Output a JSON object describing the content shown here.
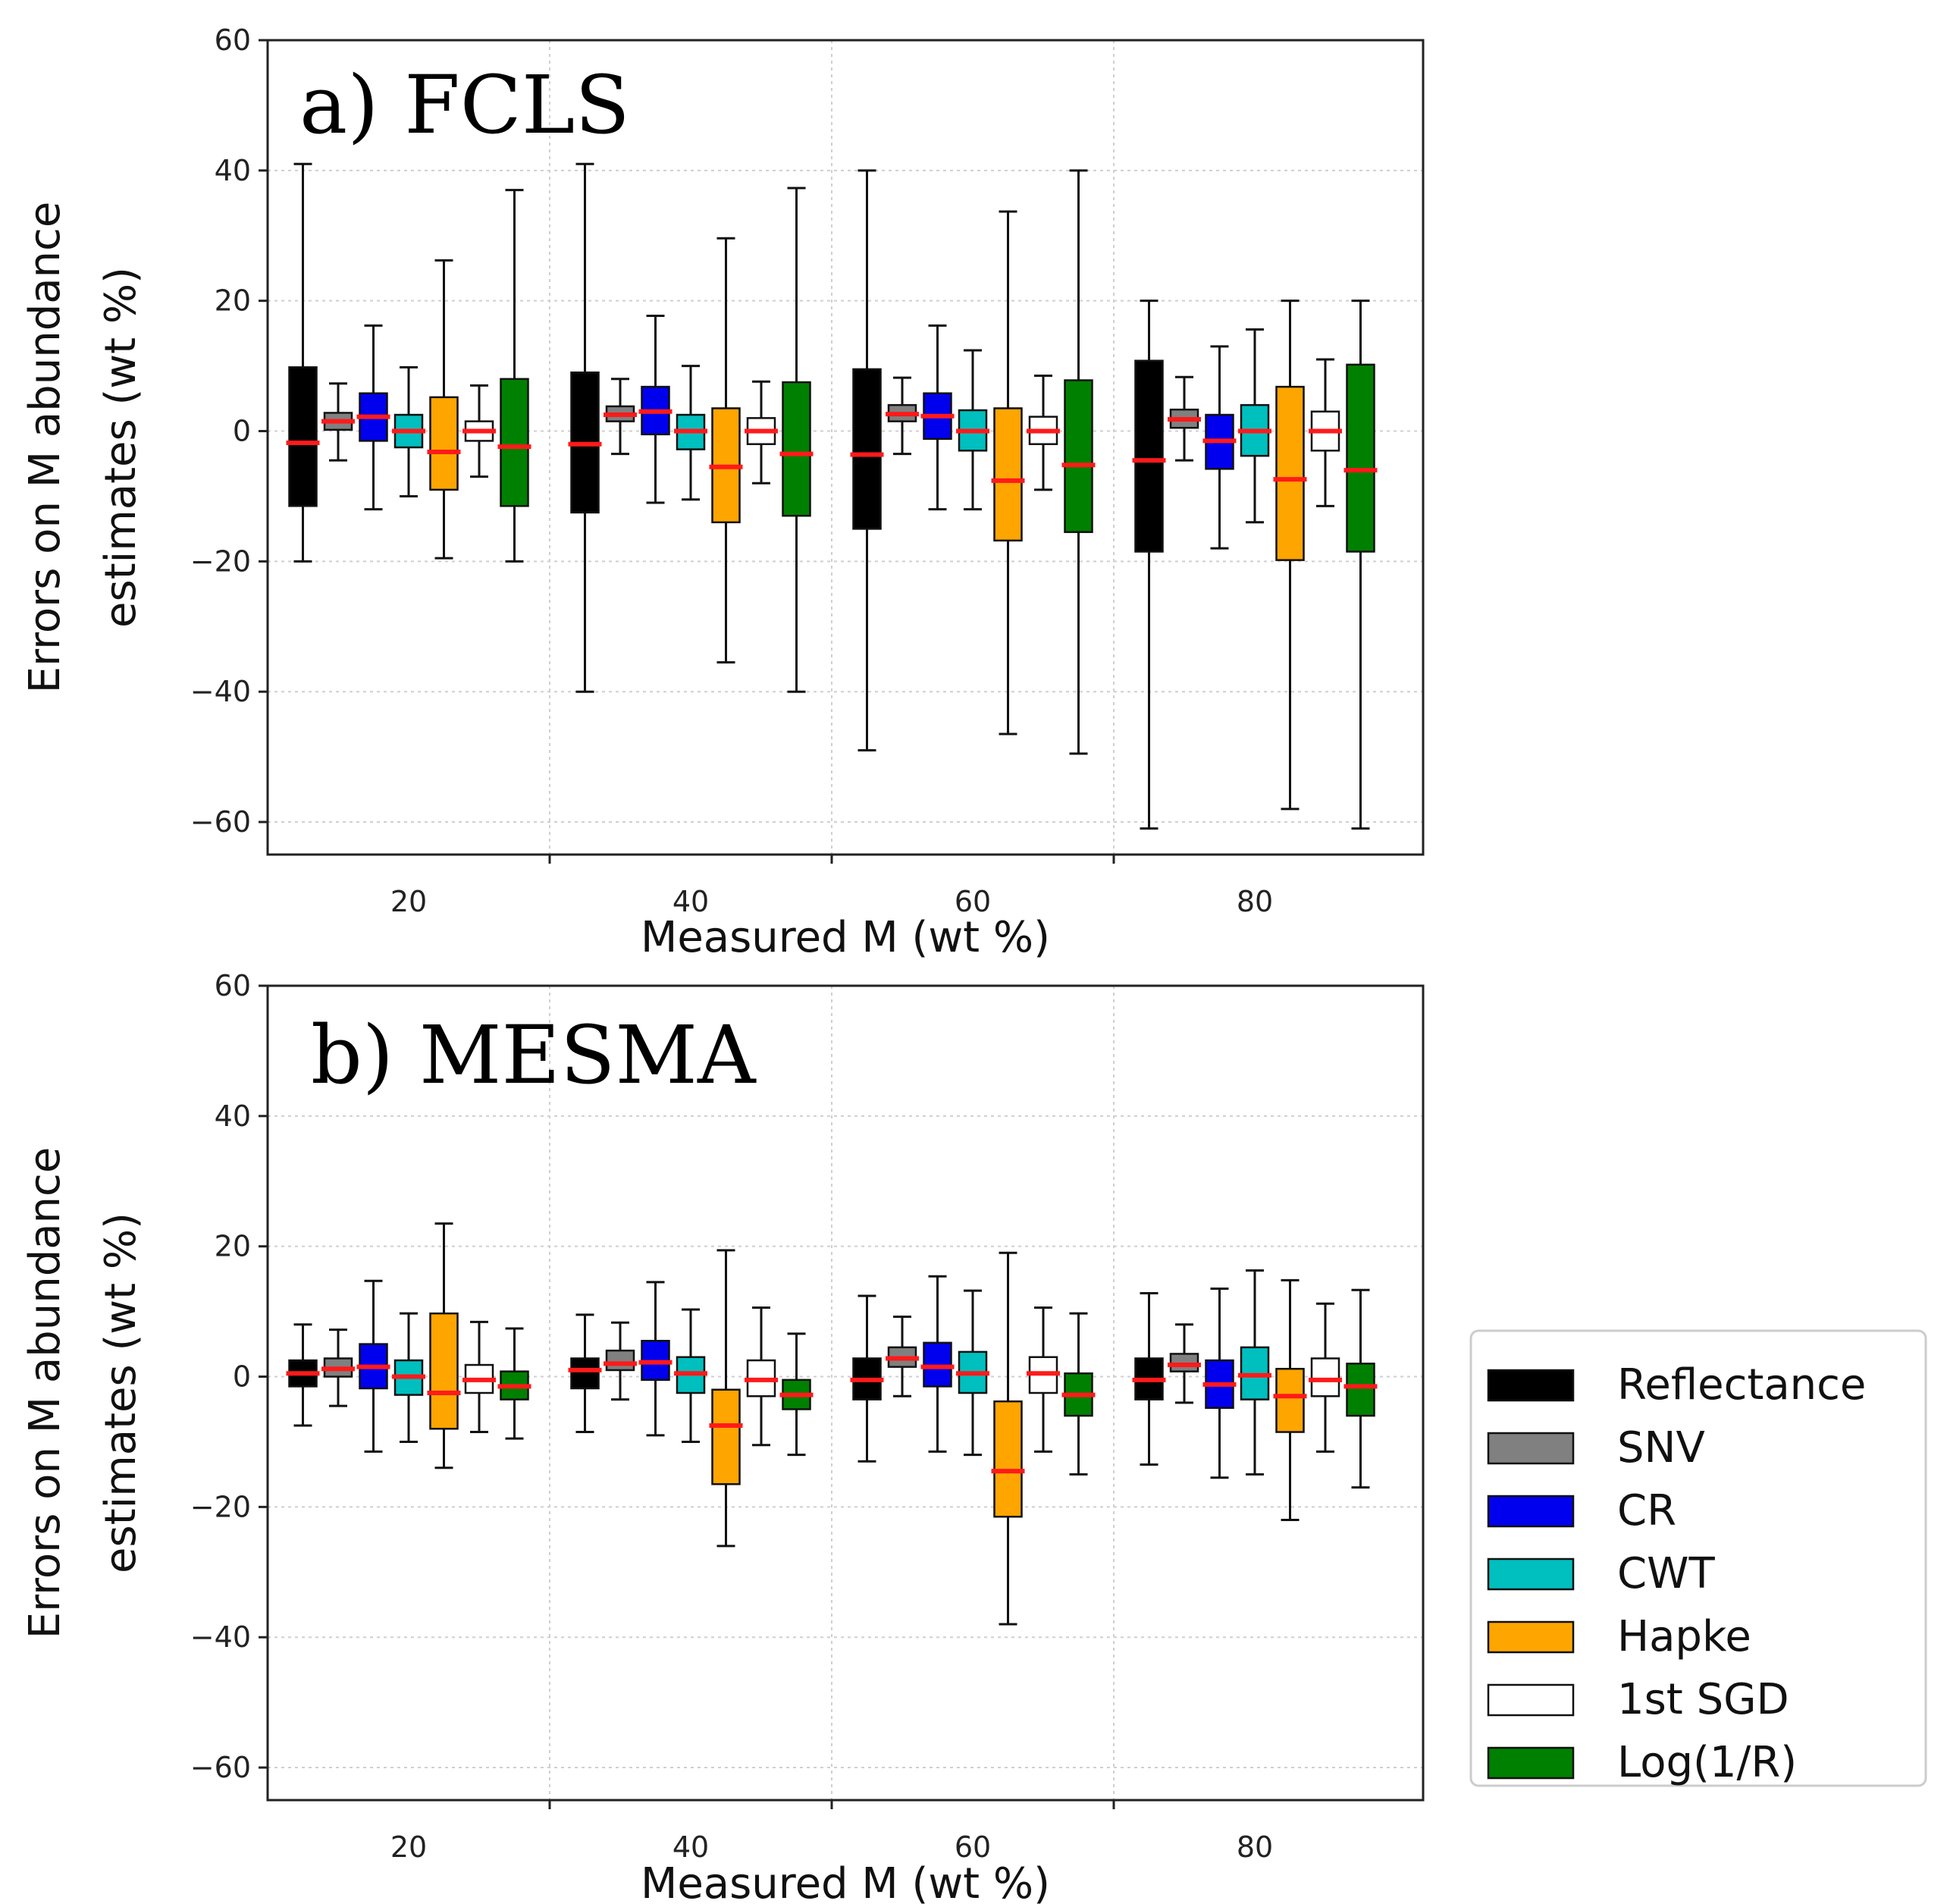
{
  "chart_data": [
    {
      "type": "box",
      "title": "a) FCLS",
      "xlabel": "Measured M (wt %)",
      "ylabel_line1": "Errors on M abundance",
      "ylabel_line2": "estimates (wt %)",
      "ylim": [
        -65,
        60
      ],
      "yticks": [
        60,
        40,
        20,
        0,
        -20,
        -40,
        -60
      ],
      "ytick_labels": [
        "60",
        "40",
        "20",
        "0",
        "−20",
        "−40",
        "−60"
      ],
      "categories": [
        "20",
        "40",
        "60",
        "80"
      ],
      "series": [
        {
          "name": "Reflectance",
          "color": "#000000",
          "data": [
            {
              "whislo": -20,
              "q1": -11.5,
              "med": -1.8,
              "q3": 9.8,
              "whishi": 41
            },
            {
              "whislo": -40,
              "q1": -12.5,
              "med": -2,
              "q3": 9,
              "whishi": 41
            },
            {
              "whislo": -49,
              "q1": -15,
              "med": -3.6,
              "q3": 9.5,
              "whishi": 40
            },
            {
              "whislo": -61,
              "q1": -18.5,
              "med": -4.5,
              "q3": 10.8,
              "whishi": 20
            }
          ]
        },
        {
          "name": "SNV",
          "color": "#808080",
          "data": [
            {
              "whislo": -4.5,
              "q1": 0.2,
              "med": 1.5,
              "q3": 2.8,
              "whishi": 7.3
            },
            {
              "whislo": -3.5,
              "q1": 1.5,
              "med": 2.5,
              "q3": 3.8,
              "whishi": 8
            },
            {
              "whislo": -3.5,
              "q1": 1.5,
              "med": 2.6,
              "q3": 4,
              "whishi": 8.2
            },
            {
              "whislo": -4.5,
              "q1": 0.5,
              "med": 1.8,
              "q3": 3.3,
              "whishi": 8.3
            }
          ]
        },
        {
          "name": "CR",
          "color": "#0000ee",
          "data": [
            {
              "whislo": -12,
              "q1": -1.5,
              "med": 2.2,
              "q3": 5.8,
              "whishi": 16.2
            },
            {
              "whislo": -11,
              "q1": -0.5,
              "med": 3,
              "q3": 6.8,
              "whishi": 17.7
            },
            {
              "whislo": -12,
              "q1": -1.2,
              "med": 2.3,
              "q3": 5.8,
              "whishi": 16.2
            },
            {
              "whislo": -18,
              "q1": -5.8,
              "med": -1.5,
              "q3": 2.5,
              "whishi": 13
            }
          ]
        },
        {
          "name": "CWT",
          "color": "#00bfbf",
          "data": [
            {
              "whislo": -10,
              "q1": -2.5,
              "med": 0,
              "q3": 2.5,
              "whishi": 9.8
            },
            {
              "whislo": -10.5,
              "q1": -2.8,
              "med": 0,
              "q3": 2.5,
              "whishi": 10
            },
            {
              "whislo": -12,
              "q1": -3,
              "med": 0,
              "q3": 3.2,
              "whishi": 12.4
            },
            {
              "whislo": -14,
              "q1": -3.8,
              "med": 0,
              "q3": 4,
              "whishi": 15.6
            }
          ]
        },
        {
          "name": "Hapke",
          "color": "#ffa500",
          "data": [
            {
              "whislo": -19.5,
              "q1": -9,
              "med": -3.2,
              "q3": 5.2,
              "whishi": 26.2
            },
            {
              "whislo": -35.5,
              "q1": -14,
              "med": -5.5,
              "q3": 3.5,
              "whishi": 29.6
            },
            {
              "whislo": -46.5,
              "q1": -16.8,
              "med": -7.6,
              "q3": 3.5,
              "whishi": 33.7
            },
            {
              "whislo": -58,
              "q1": -19.8,
              "med": -7.4,
              "q3": 6.8,
              "whishi": 20
            }
          ]
        },
        {
          "name": "1st SGD",
          "color": "#ffffff",
          "data": [
            {
              "whislo": -7,
              "q1": -1.5,
              "med": 0,
              "q3": 1.5,
              "whishi": 7
            },
            {
              "whislo": -8,
              "q1": -2,
              "med": 0,
              "q3": 2,
              "whishi": 7.6
            },
            {
              "whislo": -9,
              "q1": -2,
              "med": 0,
              "q3": 2.2,
              "whishi": 8.5
            },
            {
              "whislo": -11.5,
              "q1": -3,
              "med": 0,
              "q3": 3,
              "whishi": 11
            }
          ]
        },
        {
          "name": "Log(1/R)",
          "color": "#008000",
          "data": [
            {
              "whislo": -20,
              "q1": -11.5,
              "med": -2.4,
              "q3": 8,
              "whishi": 37
            },
            {
              "whislo": -40,
              "q1": -13,
              "med": -3.5,
              "q3": 7.5,
              "whishi": 37.3
            },
            {
              "whislo": -49.5,
              "q1": -15.5,
              "med": -5.2,
              "q3": 7.8,
              "whishi": 40
            },
            {
              "whislo": -61,
              "q1": -18.5,
              "med": -6,
              "q3": 10.2,
              "whishi": 20
            }
          ]
        }
      ]
    },
    {
      "type": "box",
      "title": "b) MESMA",
      "xlabel": "Measured M (wt %)",
      "ylabel_line1": "Errors on M abundance",
      "ylabel_line2": "estimates (wt %)",
      "ylim": [
        -65,
        60
      ],
      "yticks": [
        60,
        40,
        20,
        0,
        -20,
        -40,
        -60
      ],
      "ytick_labels": [
        "60",
        "40",
        "20",
        "0",
        "−20",
        "−40",
        "−60"
      ],
      "categories": [
        "20",
        "40",
        "60",
        "80"
      ],
      "series": [
        {
          "name": "Reflectance",
          "color": "#000000",
          "data": [
            {
              "whislo": -7.5,
              "q1": -1.5,
              "med": 0.5,
              "q3": 2.5,
              "whishi": 8
            },
            {
              "whislo": -8.5,
              "q1": -1.8,
              "med": 1,
              "q3": 2.8,
              "whishi": 9.5
            },
            {
              "whislo": -13,
              "q1": -3.5,
              "med": -0.5,
              "q3": 2.8,
              "whishi": 12.4
            },
            {
              "whislo": -13.5,
              "q1": -3.5,
              "med": -0.5,
              "q3": 2.8,
              "whishi": 12.8
            }
          ]
        },
        {
          "name": "SNV",
          "color": "#808080",
          "data": [
            {
              "whislo": -4.5,
              "q1": 0,
              "med": 1.2,
              "q3": 2.8,
              "whishi": 7.2
            },
            {
              "whislo": -3.5,
              "q1": 1,
              "med": 2,
              "q3": 4,
              "whishi": 8.3
            },
            {
              "whislo": -3,
              "q1": 1.5,
              "med": 2.8,
              "q3": 4.5,
              "whishi": 9.2
            },
            {
              "whislo": -4,
              "q1": 0.8,
              "med": 1.8,
              "q3": 3.5,
              "whishi": 8
            }
          ]
        },
        {
          "name": "CR",
          "color": "#0000ee",
          "data": [
            {
              "whislo": -11.5,
              "q1": -1.8,
              "med": 1.5,
              "q3": 5,
              "whishi": 14.7
            },
            {
              "whislo": -9,
              "q1": -0.5,
              "med": 2.2,
              "q3": 5.5,
              "whishi": 14.5
            },
            {
              "whislo": -11.5,
              "q1": -1.5,
              "med": 1.5,
              "q3": 5.2,
              "whishi": 15.4
            },
            {
              "whislo": -15.5,
              "q1": -4.8,
              "med": -1.2,
              "q3": 2.5,
              "whishi": 13.5
            }
          ]
        },
        {
          "name": "CWT",
          "color": "#00bfbf",
          "data": [
            {
              "whislo": -10,
              "q1": -2.8,
              "med": 0,
              "q3": 2.5,
              "whishi": 9.7
            },
            {
              "whislo": -10,
              "q1": -2.5,
              "med": 0.5,
              "q3": 3,
              "whishi": 10.3
            },
            {
              "whislo": -12,
              "q1": -2.5,
              "med": 0.5,
              "q3": 3.8,
              "whishi": 13.2
            },
            {
              "whislo": -15,
              "q1": -3.5,
              "med": 0.2,
              "q3": 4.5,
              "whishi": 16.3
            }
          ]
        },
        {
          "name": "Hapke",
          "color": "#ffa500",
          "data": [
            {
              "whislo": -14,
              "q1": -8,
              "med": -2.5,
              "q3": 9.7,
              "whishi": 23.5
            },
            {
              "whislo": -26,
              "q1": -16.5,
              "med": -7.5,
              "q3": -2,
              "whishi": 19.4
            },
            {
              "whislo": -38,
              "q1": -21.5,
              "med": -14.5,
              "q3": -3.8,
              "whishi": 19
            },
            {
              "whislo": -22,
              "q1": -8.5,
              "med": -3,
              "q3": 1.2,
              "whishi": 14.8
            }
          ]
        },
        {
          "name": "1st SGD",
          "color": "#ffffff",
          "data": [
            {
              "whislo": -8.5,
              "q1": -2.5,
              "med": -0.5,
              "q3": 1.8,
              "whishi": 8.4
            },
            {
              "whislo": -10.5,
              "q1": -3,
              "med": -0.5,
              "q3": 2.5,
              "whishi": 10.6
            },
            {
              "whislo": -11.5,
              "q1": -2.5,
              "med": 0.5,
              "q3": 3,
              "whishi": 10.6
            },
            {
              "whislo": -11.5,
              "q1": -3,
              "med": -0.5,
              "q3": 2.8,
              "whishi": 11.2
            }
          ]
        },
        {
          "name": "Log(1/R)",
          "color": "#008000",
          "data": [
            {
              "whislo": -9.5,
              "q1": -3.5,
              "med": -1.5,
              "q3": 0.8,
              "whishi": 7.4
            },
            {
              "whislo": -12,
              "q1": -5,
              "med": -2.8,
              "q3": -0.5,
              "whishi": 6.6
            },
            {
              "whislo": -15,
              "q1": -6,
              "med": -2.8,
              "q3": 0.5,
              "whishi": 9.7
            },
            {
              "whislo": -17,
              "q1": -6,
              "med": -1.5,
              "q3": 2,
              "whishi": 13.3
            }
          ]
        }
      ]
    }
  ],
  "legend": {
    "placement": "right",
    "items": [
      {
        "label": "Reflectance",
        "color": "#000000"
      },
      {
        "label": "SNV",
        "color": "#808080"
      },
      {
        "label": "CR",
        "color": "#0000ee"
      },
      {
        "label": "CWT",
        "color": "#00bfbf"
      },
      {
        "label": "Hapke",
        "color": "#ffa500"
      },
      {
        "label": "1st SGD",
        "color": "#ffffff"
      },
      {
        "label": "Log(1/R)",
        "color": "#008000"
      }
    ]
  }
}
